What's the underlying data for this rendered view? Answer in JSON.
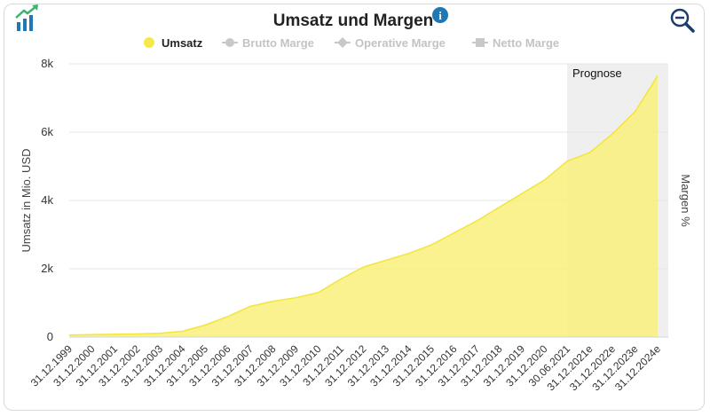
{
  "header": {
    "title": "Umsatz und Margen",
    "info_icon": "info-icon",
    "growth_icon": "growth-chart-icon",
    "zoom_icon": "zoom-out-icon"
  },
  "legend": [
    {
      "name": "Umsatz",
      "active": true,
      "color": "#f5e94a"
    },
    {
      "name": "Brutto Marge",
      "active": false,
      "color": "#c8c8c8"
    },
    {
      "name": "Operative Marge",
      "active": false,
      "color": "#c8c8c8"
    },
    {
      "name": "Netto Marge",
      "active": false,
      "color": "#c8c8c8"
    }
  ],
  "colors": {
    "area_fill": "#f8f07a",
    "area_line": "#f3e53c",
    "forecast_band": "#efefef",
    "icon_blue": "#1f78b4",
    "icon_green": "#3cb371"
  },
  "chart_data": {
    "type": "area",
    "ylabel": "Umsatz in Mio. USD",
    "y2label": "Margen %",
    "ylim": [
      0,
      8000
    ],
    "yticks": [
      "0",
      "2k",
      "4k",
      "6k",
      "8k"
    ],
    "grid": true,
    "legend_position": "top",
    "forecast_label": "Prognose",
    "forecast_start": "30.06.2021",
    "categories": [
      "31.12.1999",
      "31.12.2000",
      "31.12.2001",
      "31.12.2002",
      "31.12.2003",
      "31.12.2004",
      "31.12.2005",
      "31.12.2006",
      "31.12.2007",
      "31.12.2008",
      "31.12.2009",
      "31.12.2010",
      "31.12.2011",
      "31.12.2012",
      "31.12.2013",
      "31.12.2014",
      "31.12.2015",
      "31.12.2016",
      "31.12.2017",
      "31.12.2018",
      "31.12.2019",
      "31.12.2020",
      "30.06.2021",
      "31.12.2021e",
      "31.12.2022e",
      "31.12.2023e",
      "31.12.2024e"
    ],
    "series": [
      {
        "name": "Umsatz",
        "values": [
          60,
          70,
          80,
          90,
          110,
          170,
          350,
          600,
          900,
          1050,
          1150,
          1300,
          1700,
          2050,
          2250,
          2450,
          2700,
          3050,
          3400,
          3800,
          4200,
          4600,
          5150,
          5400,
          5950,
          6600,
          7650
        ]
      }
    ]
  }
}
